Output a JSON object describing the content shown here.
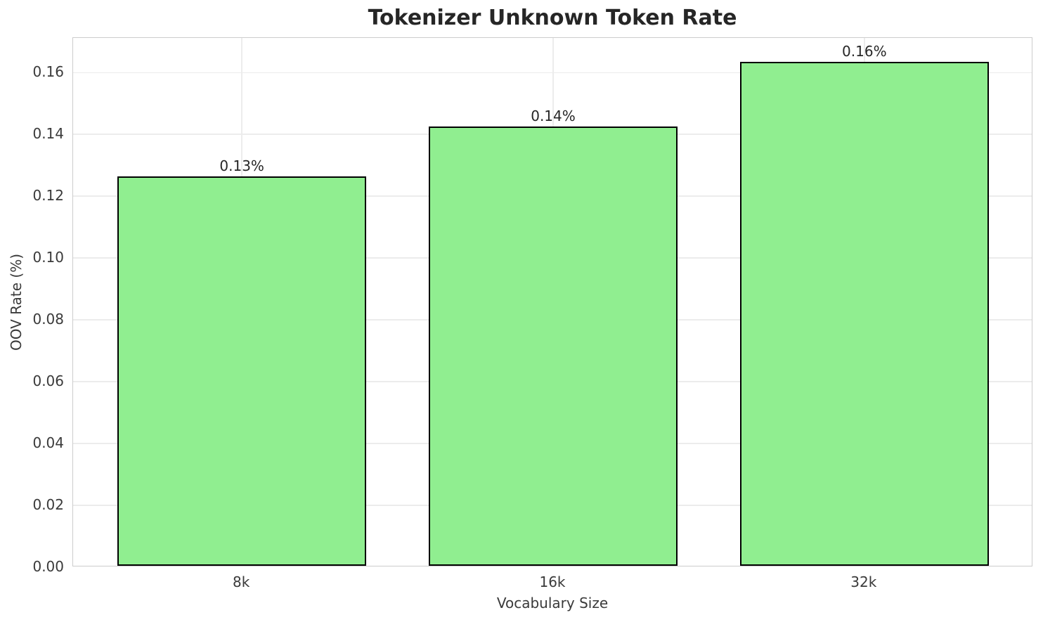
{
  "chart_data": {
    "type": "bar",
    "title": "Tokenizer Unknown Token Rate",
    "xlabel": "Vocabulary Size",
    "ylabel": "OOV Rate (%)",
    "categories": [
      "8k",
      "16k",
      "32k"
    ],
    "values": [
      0.126,
      0.142,
      0.163
    ],
    "bar_labels": [
      "0.13%",
      "0.14%",
      "0.16%"
    ],
    "ylim": [
      0,
      0.1712
    ],
    "xlim": [
      -0.5424,
      2.5424
    ],
    "bar_width_fraction": 0.8,
    "yticks": [
      0.0,
      0.02,
      0.04,
      0.06,
      0.08,
      0.1,
      0.12,
      0.14,
      0.16
    ],
    "ytick_labels": [
      "0.00",
      "0.02",
      "0.04",
      "0.06",
      "0.08",
      "0.10",
      "0.12",
      "0.14",
      "0.16"
    ],
    "grid": true,
    "legend_position": "none",
    "colors": {
      "background": "#ffffff",
      "bar_fill": "#90EE90",
      "bar_edge": "#000000",
      "grid": "#ececec",
      "spine": "#cccccc",
      "title_text": "#262626",
      "tick_text": "#3a3a3a",
      "value_label_text": "#262626"
    }
  }
}
